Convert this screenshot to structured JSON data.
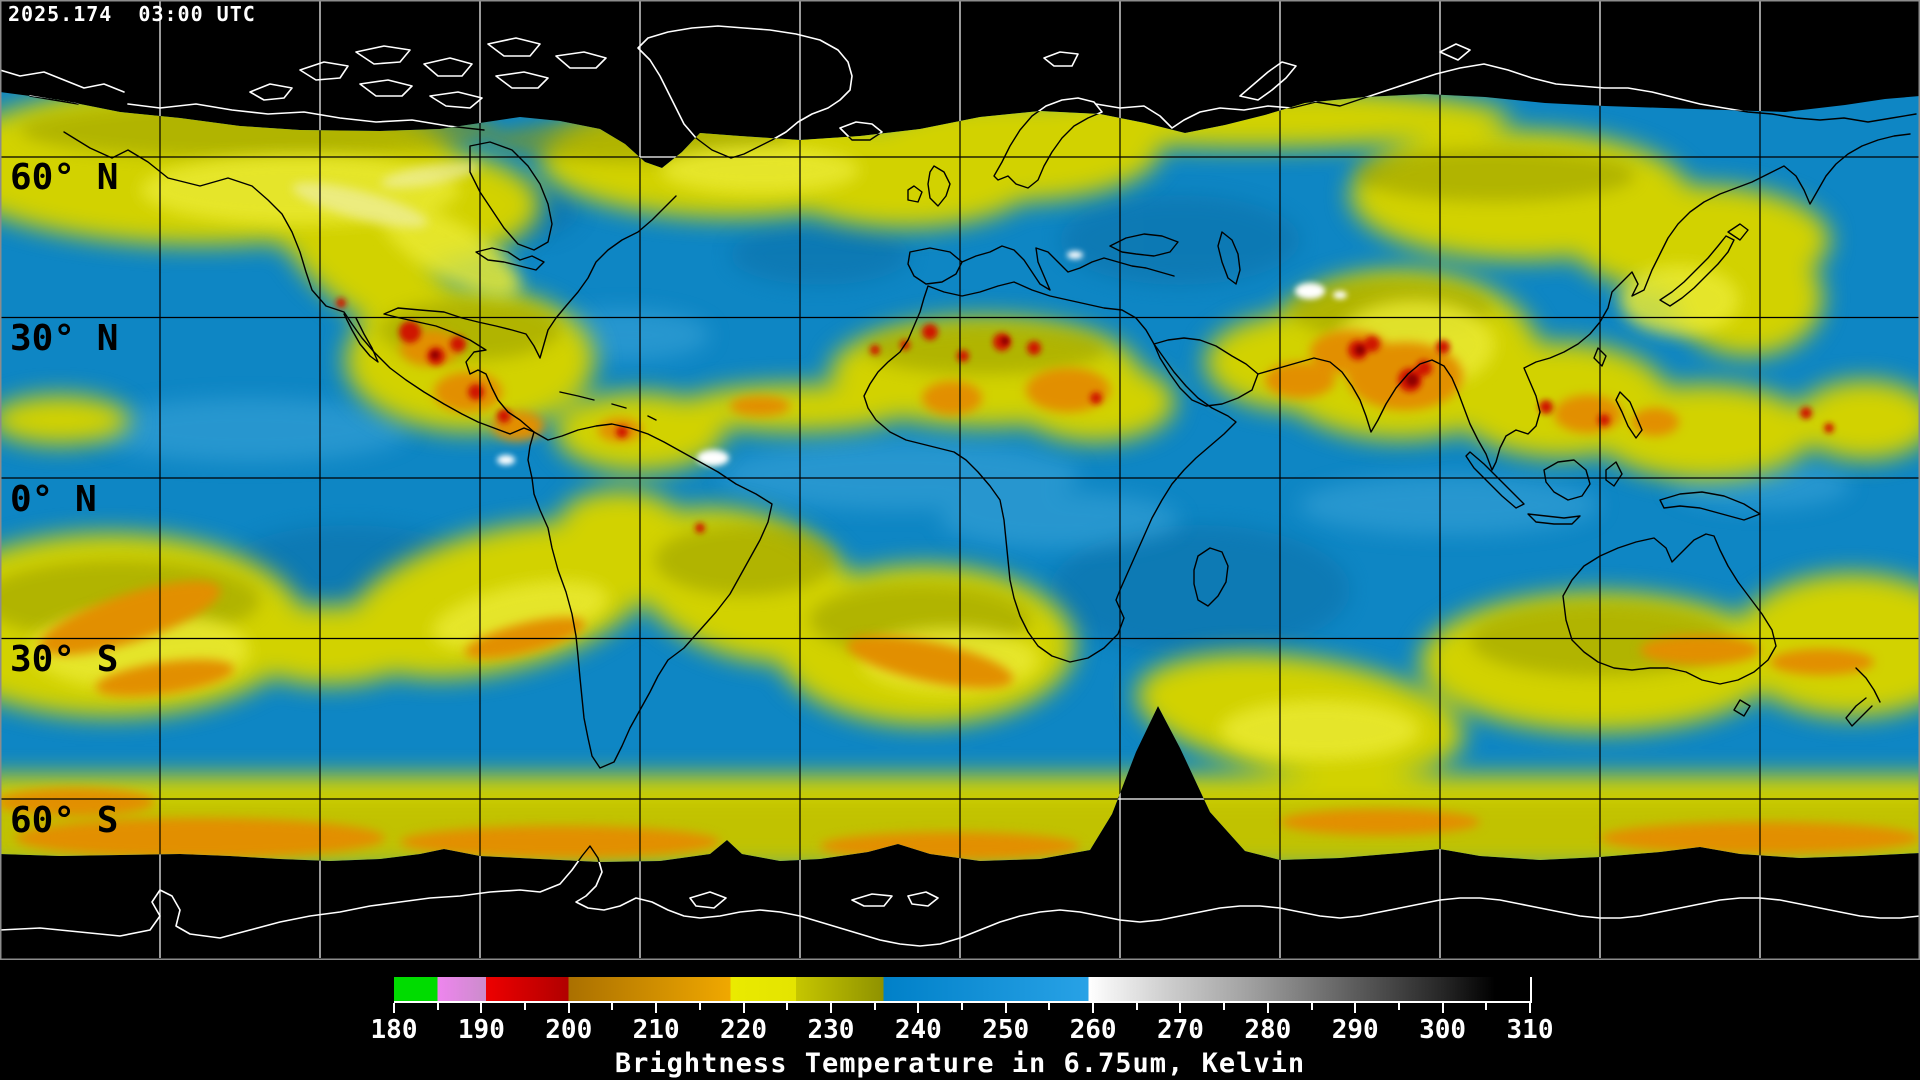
{
  "header": {
    "timestamp": "2025.174  03:00 UTC"
  },
  "map": {
    "lat_labels": [
      {
        "text": "60° N"
      },
      {
        "text": "30° N"
      },
      {
        "text": "0° N"
      },
      {
        "text": "30° S"
      },
      {
        "text": "60° S"
      }
    ],
    "grid_lat_degrees": [
      60,
      30,
      0,
      -30,
      -60
    ],
    "grid_lon_spacing_degrees": 30
  },
  "palette": {
    "map_blue": "#0e86c4",
    "cloud_yellow": "#d2d200",
    "cloud_olive": "#969c00",
    "cloud_bright": "#e9e932",
    "cloud_pale": "#f0f0b8",
    "conv_orange": "#e28f00",
    "conv_red": "#cf1800",
    "conv_dark_red": "#8f0000",
    "warm_white": "#ffffff",
    "light_blue": "#3fa7da",
    "deep_blue": "#0a6ca2",
    "frame_gray": "#8c8c8c",
    "background": "#000000",
    "text_light": "#ffffff",
    "text_dark": "#000000"
  },
  "colorbar": {
    "title": "Brightness Temperature in 6.75um, Kelvin",
    "min": 180,
    "max": 310,
    "major_step": 10,
    "minor_step": 5,
    "tick_labels": [
      "180",
      "190",
      "200",
      "210",
      "220",
      "230",
      "240",
      "250",
      "260",
      "270",
      "280",
      "290",
      "300",
      "310"
    ],
    "gradient_stops": [
      [
        180,
        "#00dc00"
      ],
      [
        185,
        "#00dc00"
      ],
      [
        185,
        "#ee85ee"
      ],
      [
        190.5,
        "#cc8ccc"
      ],
      [
        190.5,
        "#ee0000"
      ],
      [
        200,
        "#b00000"
      ],
      [
        200,
        "#aa7000"
      ],
      [
        218.5,
        "#f0a800"
      ],
      [
        218.5,
        "#eaea00"
      ],
      [
        226,
        "#e4e400"
      ],
      [
        226,
        "#c6c600"
      ],
      [
        236,
        "#8f9200"
      ],
      [
        236,
        "#0080c8"
      ],
      [
        259.5,
        "#28a2e6"
      ],
      [
        259.5,
        "#ffffff"
      ],
      [
        268,
        "#d0d0d0"
      ],
      [
        278,
        "#a0a0a0"
      ],
      [
        290,
        "#5c5c5c"
      ],
      [
        300,
        "#262626"
      ],
      [
        306,
        "#000000"
      ],
      [
        310,
        "#000000"
      ]
    ]
  },
  "chart_data": {
    "type": "heatmap",
    "title": "Brightness Temperature in 6.75um, Kelvin",
    "scale_units": "Kelvin",
    "scale_range": [
      180,
      310
    ],
    "scale_ticks": [
      180,
      190,
      200,
      210,
      220,
      230,
      240,
      250,
      260,
      270,
      280,
      290,
      300,
      310
    ],
    "scale_color_bands": [
      {
        "range": [
          180,
          185
        ],
        "color": "green"
      },
      {
        "range": [
          185,
          190
        ],
        "color": "violet"
      },
      {
        "range": [
          190,
          200
        ],
        "color": "red"
      },
      {
        "range": [
          200,
          218
        ],
        "color": "orange"
      },
      {
        "range": [
          218,
          226
        ],
        "color": "yellow"
      },
      {
        "range": [
          226,
          236
        ],
        "color": "olive"
      },
      {
        "range": [
          236,
          260
        ],
        "color": "blue"
      },
      {
        "range": [
          260,
          310
        ],
        "color": "white fading to black"
      }
    ],
    "timestamp": "2025.174 03:00 UTC"
  }
}
